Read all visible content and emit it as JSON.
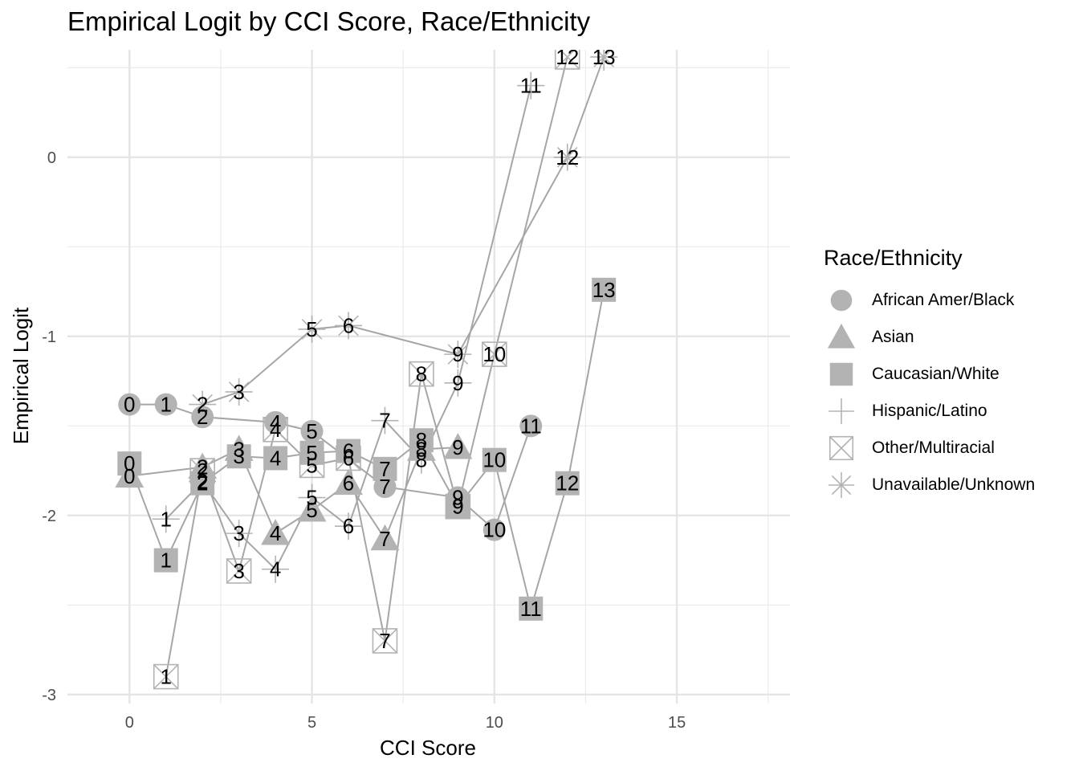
{
  "chart_data": {
    "type": "scatter",
    "title": "Empirical Logit by CCI Score, Race/Ethnicity",
    "xlabel": "CCI Score",
    "ylabel": "Empirical Logit",
    "xlim": [
      -1.7,
      18.1
    ],
    "ylim": [
      -3.05,
      0.6
    ],
    "xticks": [
      0,
      5,
      10,
      15
    ],
    "yticks": [
      -3,
      -2,
      -1,
      0
    ],
    "grid": true,
    "legend_title": "Race/Ethnicity",
    "legend_position": "right",
    "point_color": "#b3b3b3",
    "line_color": "#a6a6a6",
    "series": [
      {
        "name": "African Amer/Black",
        "shape": "circle",
        "x": [
          0,
          1,
          2,
          4,
          5,
          7,
          9,
          10,
          11
        ],
        "y": [
          -1.38,
          -1.38,
          -1.45,
          -1.48,
          -1.53,
          -1.84,
          -1.9,
          -2.08,
          -1.5
        ],
        "labels": [
          "0",
          "1",
          "2",
          "4",
          "5",
          "7",
          "9",
          "10",
          "11"
        ]
      },
      {
        "name": "Asian",
        "shape": "triangle",
        "x": [
          0,
          2,
          3,
          4,
          5,
          6,
          7,
          8,
          9
        ],
        "y": [
          -1.78,
          -1.73,
          -1.63,
          -2.1,
          -1.97,
          -1.82,
          -2.13,
          -1.63,
          -1.62
        ],
        "labels": [
          "0",
          "2",
          "3",
          "4",
          "5",
          "6",
          "7",
          "8",
          "9"
        ]
      },
      {
        "name": "Caucasian/White",
        "shape": "square",
        "x": [
          0,
          1,
          2,
          3,
          4,
          5,
          6,
          7,
          8,
          9,
          10,
          11,
          12,
          13
        ],
        "y": [
          -1.71,
          -2.25,
          -1.82,
          -1.67,
          -1.68,
          -1.65,
          -1.64,
          -1.74,
          -1.58,
          -1.95,
          -1.69,
          -2.52,
          -1.82,
          -0.74
        ],
        "labels": [
          "0",
          "1",
          "2",
          "3",
          "4",
          "5",
          "6",
          "7",
          "8",
          "9",
          "10",
          "11",
          "12",
          "13"
        ]
      },
      {
        "name": "Hispanic/Latino",
        "shape": "plus",
        "x": [
          1,
          2,
          3,
          4,
          5,
          6,
          7,
          8,
          9,
          11
        ],
        "y": [
          -2.02,
          -1.81,
          -2.1,
          -2.3,
          -1.9,
          -2.06,
          -1.47,
          -1.69,
          -1.26,
          0.4
        ],
        "labels": [
          "1",
          "2",
          "3",
          "4",
          "5",
          "6",
          "7",
          "8",
          "9",
          "11"
        ]
      },
      {
        "name": "Other/Multiracial",
        "shape": "boxcross",
        "x": [
          1,
          2,
          3,
          4,
          5,
          6,
          7,
          8,
          9,
          10,
          12
        ],
        "y": [
          -2.9,
          -1.75,
          -2.31,
          -1.52,
          -1.72,
          -1.68,
          -2.7,
          -1.21,
          -1.95,
          -1.1,
          0.56
        ],
        "labels": [
          "1",
          "2",
          "3",
          "4",
          "5",
          "6",
          "7",
          "8",
          "9",
          "10",
          "12"
        ]
      },
      {
        "name": "Unavailable/Unknown",
        "shape": "asterisk",
        "x": [
          2,
          3,
          5,
          6,
          9,
          12,
          13
        ],
        "y": [
          -1.38,
          -1.31,
          -0.96,
          -0.94,
          -1.1,
          0.0,
          0.56
        ],
        "labels": [
          "2",
          "3",
          "5",
          "6",
          "9",
          "12",
          "13"
        ]
      }
    ]
  }
}
